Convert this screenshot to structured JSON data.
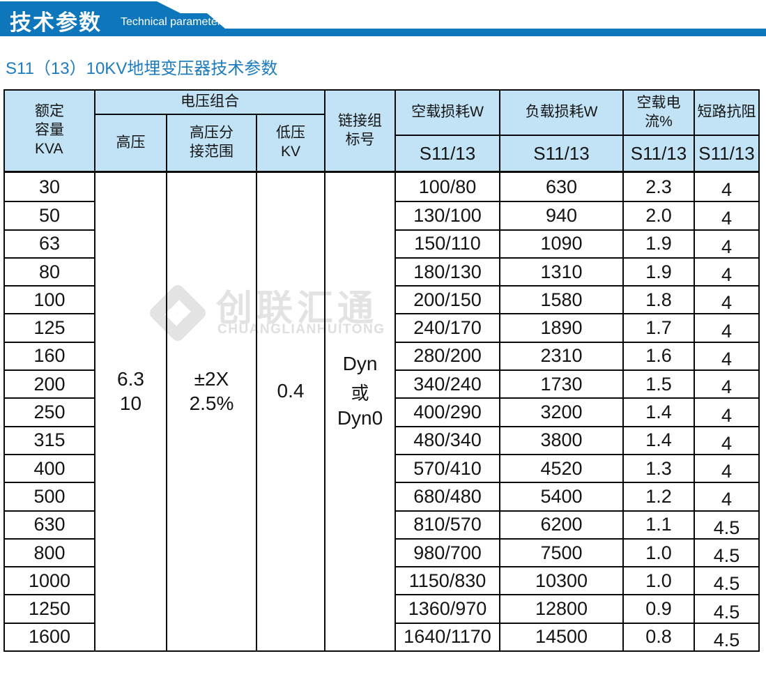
{
  "banner": {
    "title": "技术参数",
    "subtitle": "Technical parameter"
  },
  "page_title": "S11（13）10KV地埋变压器技术参数",
  "watermark": {
    "brand_cn": "创联汇通",
    "brand_en": "CHUANGLIANHUITONG"
  },
  "colors": {
    "accent_blue": "#0e76ba",
    "subtitle_blue": "#1d7cbe",
    "header_bg": "#c2e3f5",
    "border_black": "#0a0a0a",
    "watermark_grey": "#e3e3e3"
  },
  "table": {
    "header": {
      "capacity_lines": [
        "额定",
        "容量",
        "KVA"
      ],
      "voltage_group": "电压组合",
      "high_voltage": "高压",
      "tap_range_lines": [
        "高压分",
        "接范围"
      ],
      "low_voltage_lines": [
        "低压",
        "KV"
      ],
      "link_group_lines": [
        "链接组",
        "标号"
      ],
      "no_load_loss": "空载损耗W",
      "load_loss": "负载损耗W",
      "no_load_current": "空载电流%",
      "impedance": "短路抗阻",
      "model_sub": "S11/13"
    },
    "merged": {
      "high_voltage_lines": [
        "6.3",
        "10"
      ],
      "tap_range_lines": [
        "±2X",
        "2.5%"
      ],
      "low_voltage": "0.4",
      "link_group_lines": [
        "Dyn",
        "或",
        "Dyn0"
      ]
    },
    "rows": [
      {
        "kva": "30",
        "no_load": "100/80",
        "load": "630",
        "current": "2.3",
        "impedance": "4"
      },
      {
        "kva": "50",
        "no_load": "130/100",
        "load": "940",
        "current": "2.0",
        "impedance": "4"
      },
      {
        "kva": "63",
        "no_load": "150/110",
        "load": "1090",
        "current": "1.9",
        "impedance": "4"
      },
      {
        "kva": "80",
        "no_load": "180/130",
        "load": "1310",
        "current": "1.9",
        "impedance": "4"
      },
      {
        "kva": "100",
        "no_load": "200/150",
        "load": "1580",
        "current": "1.8",
        "impedance": "4"
      },
      {
        "kva": "125",
        "no_load": "240/170",
        "load": "1890",
        "current": "1.7",
        "impedance": "4"
      },
      {
        "kva": "160",
        "no_load": "280/200",
        "load": "2310",
        "current": "1.6",
        "impedance": "4"
      },
      {
        "kva": "200",
        "no_load": "340/240",
        "load": "1730",
        "current": "1.5",
        "impedance": "4"
      },
      {
        "kva": "250",
        "no_load": "400/290",
        "load": "3200",
        "current": "1.4",
        "impedance": "4"
      },
      {
        "kva": "315",
        "no_load": "480/340",
        "load": "3800",
        "current": "1.4",
        "impedance": "4"
      },
      {
        "kva": "400",
        "no_load": "570/410",
        "load": "4520",
        "current": "1.3",
        "impedance": "4"
      },
      {
        "kva": "500",
        "no_load": "680/480",
        "load": "5400",
        "current": "1.2",
        "impedance": "4"
      },
      {
        "kva": "630",
        "no_load": "810/570",
        "load": "6200",
        "current": "1.1",
        "impedance": "4.5"
      },
      {
        "kva": "800",
        "no_load": "980/700",
        "load": "7500",
        "current": "1.0",
        "impedance": "4.5"
      },
      {
        "kva": "1000",
        "no_load": "1150/830",
        "load": "10300",
        "current": "1.0",
        "impedance": "4.5"
      },
      {
        "kva": "1250",
        "no_load": "1360/970",
        "load": "12800",
        "current": "0.9",
        "impedance": "4.5"
      },
      {
        "kva": "1600",
        "no_load": "1640/1170",
        "load": "14500",
        "current": "0.8",
        "impedance": "4.5"
      }
    ]
  }
}
